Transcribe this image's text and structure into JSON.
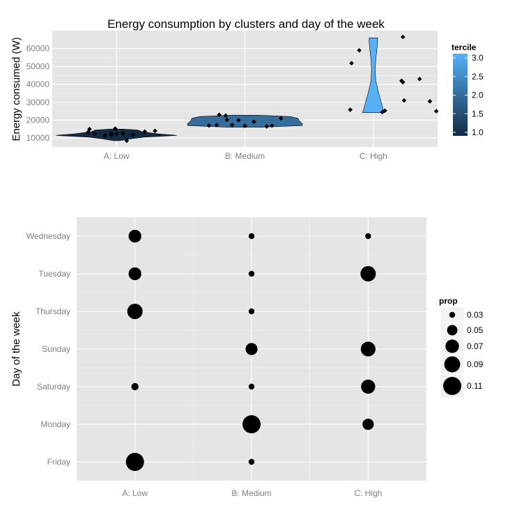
{
  "colors": {
    "panel": "#E5E5E5",
    "grid_minor": "#F2F2F2",
    "grid_major": "#FFFFFF",
    "tick_text": "#7F7F7F",
    "point": "#000000",
    "tercile_low": "#132B43",
    "tercile_high": "#56B1F7"
  },
  "chart_data": [
    {
      "type": "violin",
      "title": "Energy consumption by clusters and day of the week",
      "xlabel": "",
      "ylabel": "Energy consumed (W)",
      "categories": [
        "A: Low",
        "B: Medium",
        "C: High"
      ],
      "ylim": [
        5000,
        70000
      ],
      "yticks": [
        10000,
        20000,
        30000,
        40000,
        50000,
        60000
      ],
      "ytick_labels": [
        "10000",
        "20000",
        "30000",
        "40000",
        "50000",
        "60000"
      ],
      "grid": true,
      "violins": [
        {
          "category": "A: Low",
          "tercile": 1.0,
          "min": 8500,
          "max": 15000,
          "profile": [
            [
              8500,
              0.05
            ],
            [
              9500,
              0.22
            ],
            [
              10500,
              0.45
            ],
            [
              11500,
              1.0
            ],
            [
              12300,
              0.7
            ],
            [
              13500,
              0.42
            ],
            [
              14500,
              0.35
            ],
            [
              15000,
              0.1
            ]
          ]
        },
        {
          "category": "B: Medium",
          "tercile": 2.0,
          "min": 16000,
          "max": 22800,
          "profile": [
            [
              16000,
              0.25
            ],
            [
              17000,
              0.95
            ],
            [
              18000,
              0.95
            ],
            [
              19500,
              0.9
            ],
            [
              21000,
              0.88
            ],
            [
              22000,
              0.75
            ],
            [
              22800,
              0.2
            ]
          ]
        },
        {
          "category": "C: High",
          "tercile": 3.0,
          "min": 24200,
          "max": 66000,
          "profile": [
            [
              24200,
              0.18
            ],
            [
              26000,
              0.16
            ],
            [
              30000,
              0.13
            ],
            [
              36000,
              0.08
            ],
            [
              42000,
              0.04
            ],
            [
              48000,
              0.03
            ],
            [
              54000,
              0.04
            ],
            [
              60000,
              0.06
            ],
            [
              64000,
              0.07
            ],
            [
              66000,
              0.07
            ]
          ]
        }
      ],
      "points": [
        {
          "category": "A: Low",
          "jitter": -0.21,
          "y": 15000
        },
        {
          "category": "A: Low",
          "jitter": -0.22,
          "y": 13400
        },
        {
          "category": "A: Low",
          "jitter": -0.17,
          "y": 12200
        },
        {
          "category": "A: Low",
          "jitter": -0.09,
          "y": 11300
        },
        {
          "category": "A: Low",
          "jitter": -0.04,
          "y": 12600
        },
        {
          "category": "A: Low",
          "jitter": -0.04,
          "y": 11800
        },
        {
          "category": "A: Low",
          "jitter": 0.0,
          "y": 12400
        },
        {
          "category": "A: Low",
          "jitter": -0.01,
          "y": 15300
        },
        {
          "category": "A: Low",
          "jitter": 0.05,
          "y": 12700
        },
        {
          "category": "A: Low",
          "jitter": 0.08,
          "y": 8500
        },
        {
          "category": "A: Low",
          "jitter": 0.13,
          "y": 11800
        },
        {
          "category": "A: Low",
          "jitter": 0.22,
          "y": 13600
        },
        {
          "category": "A: Low",
          "jitter": 0.3,
          "y": 14000
        },
        {
          "category": "B: Medium",
          "jitter": -0.28,
          "y": 17000
        },
        {
          "category": "B: Medium",
          "jitter": -0.2,
          "y": 23000
        },
        {
          "category": "B: Medium",
          "jitter": -0.22,
          "y": 17300
        },
        {
          "category": "B: Medium",
          "jitter": -0.15,
          "y": 22500
        },
        {
          "category": "B: Medium",
          "jitter": -0.14,
          "y": 20200
        },
        {
          "category": "B: Medium",
          "jitter": -0.1,
          "y": 17300
        },
        {
          "category": "B: Medium",
          "jitter": -0.05,
          "y": 20000
        },
        {
          "category": "B: Medium",
          "jitter": 0.0,
          "y": 16800
        },
        {
          "category": "B: Medium",
          "jitter": 0.07,
          "y": 19100
        },
        {
          "category": "B: Medium",
          "jitter": 0.17,
          "y": 16500
        },
        {
          "category": "B: Medium",
          "jitter": 0.21,
          "y": 17000
        },
        {
          "category": "B: Medium",
          "jitter": 0.28,
          "y": 21000
        },
        {
          "category": "C: High",
          "jitter": -0.18,
          "y": 25800
        },
        {
          "category": "C: High",
          "jitter": -0.17,
          "y": 51800
        },
        {
          "category": "C: High",
          "jitter": -0.11,
          "y": 59000
        },
        {
          "category": "C: High",
          "jitter": 0.07,
          "y": 24500
        },
        {
          "category": "C: High",
          "jitter": 0.09,
          "y": 25300
        },
        {
          "category": "C: High",
          "jitter": 0.23,
          "y": 66500
        },
        {
          "category": "C: High",
          "jitter": 0.22,
          "y": 42000
        },
        {
          "category": "C: High",
          "jitter": 0.23,
          "y": 41200
        },
        {
          "category": "C: High",
          "jitter": 0.24,
          "y": 31000
        },
        {
          "category": "C: High",
          "jitter": 0.36,
          "y": 43000
        },
        {
          "category": "C: High",
          "jitter": 0.44,
          "y": 30500
        },
        {
          "category": "C: High",
          "jitter": 0.49,
          "y": 25000
        }
      ],
      "legend": {
        "title": "tercile",
        "type": "colorbar",
        "range": [
          1.0,
          3.0
        ],
        "ticks": [
          1.0,
          1.5,
          2.0,
          2.5,
          3.0
        ],
        "tick_labels": [
          "1.0",
          "1.5",
          "2.0",
          "2.5",
          "3.0"
        ],
        "placement": "right"
      }
    },
    {
      "type": "scatter",
      "title": "",
      "xlabel": "",
      "ylabel": "Day of the week",
      "categories": [
        "A: Low",
        "B: Medium",
        "C: High"
      ],
      "days": [
        "Friday",
        "Monday",
        "Saturday",
        "Sunday",
        "Thursday",
        "Tuesday",
        "Wednesday"
      ],
      "grid": true,
      "points": [
        {
          "cluster": "A: Low",
          "day": "Wednesday",
          "prop": 0.065
        },
        {
          "cluster": "A: Low",
          "day": "Tuesday",
          "prop": 0.065
        },
        {
          "cluster": "A: Low",
          "day": "Thursday",
          "prop": 0.085
        },
        {
          "cluster": "A: Low",
          "day": "Saturday",
          "prop": 0.035
        },
        {
          "cluster": "A: Low",
          "day": "Friday",
          "prop": 0.11
        },
        {
          "cluster": "B: Medium",
          "day": "Wednesday",
          "prop": 0.03
        },
        {
          "cluster": "B: Medium",
          "day": "Tuesday",
          "prop": 0.03
        },
        {
          "cluster": "B: Medium",
          "day": "Thursday",
          "prop": 0.03
        },
        {
          "cluster": "B: Medium",
          "day": "Sunday",
          "prop": 0.06
        },
        {
          "cluster": "B: Medium",
          "day": "Saturday",
          "prop": 0.03
        },
        {
          "cluster": "B: Medium",
          "day": "Monday",
          "prop": 0.11
        },
        {
          "cluster": "B: Medium",
          "day": "Friday",
          "prop": 0.03
        },
        {
          "cluster": "C: High",
          "day": "Wednesday",
          "prop": 0.03
        },
        {
          "cluster": "C: High",
          "day": "Tuesday",
          "prop": 0.085
        },
        {
          "cluster": "C: High",
          "day": "Sunday",
          "prop": 0.08
        },
        {
          "cluster": "C: High",
          "day": "Saturday",
          "prop": 0.075
        },
        {
          "cluster": "C: High",
          "day": "Monday",
          "prop": 0.055
        }
      ],
      "legend": {
        "title": "prop",
        "type": "size",
        "values": [
          0.03,
          0.05,
          0.07,
          0.09,
          0.11
        ],
        "labels": [
          "0.03",
          "0.05",
          "0.07",
          "0.09",
          "0.11"
        ],
        "placement": "right"
      }
    }
  ]
}
